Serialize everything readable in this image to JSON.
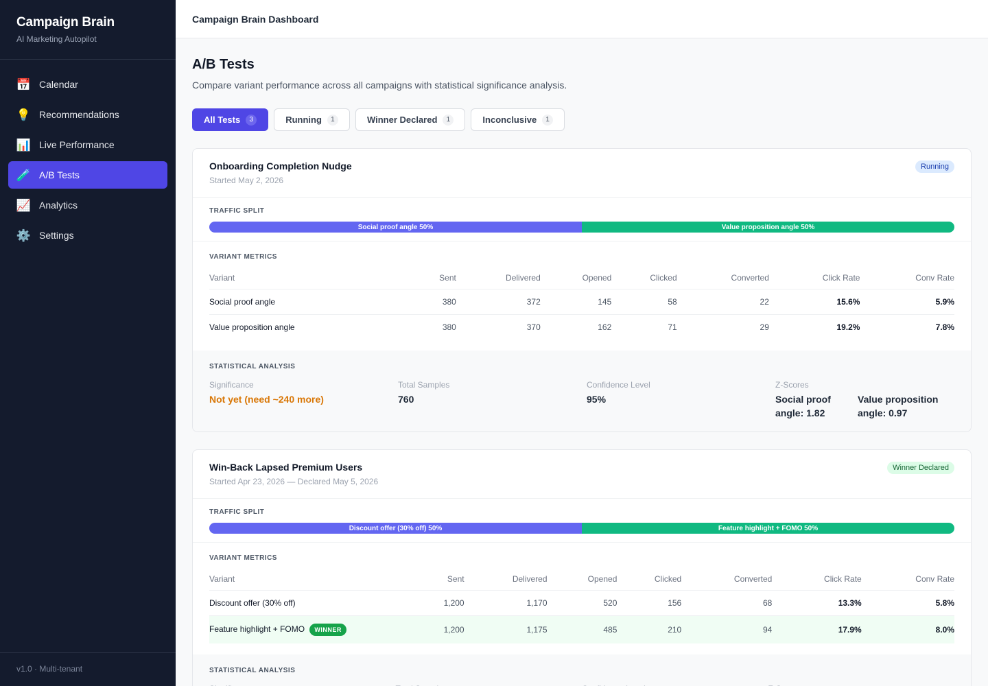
{
  "brand": {
    "title": "Campaign Brain",
    "subtitle": "AI Marketing Autopilot"
  },
  "nav": [
    {
      "label": "Calendar",
      "icon": "calendar-icon",
      "glyph": "📅"
    },
    {
      "label": "Recommendations",
      "icon": "lightbulb-icon",
      "glyph": "💡"
    },
    {
      "label": "Live Performance",
      "icon": "bar-chart-icon",
      "glyph": "📊"
    },
    {
      "label": "A/B Tests",
      "icon": "test-tube-icon",
      "glyph": "🧪",
      "active": true
    },
    {
      "label": "Analytics",
      "icon": "trend-chart-icon",
      "glyph": "📈"
    },
    {
      "label": "Settings",
      "icon": "gear-icon",
      "glyph": "⚙️"
    }
  ],
  "footer": "v1.0 · Multi-tenant",
  "topbar": {
    "title": "Campaign Brain Dashboard"
  },
  "page": {
    "title": "A/B Tests",
    "description": "Compare variant performance across all campaigns with statistical significance analysis."
  },
  "filters": [
    {
      "label": "All Tests",
      "count": "3",
      "active": true
    },
    {
      "label": "Running",
      "count": "1"
    },
    {
      "label": "Winner Declared",
      "count": "1"
    },
    {
      "label": "Inconclusive",
      "count": "1"
    }
  ],
  "labels": {
    "traffic_split": "Traffic Split",
    "variant_metrics": "Variant Metrics",
    "statistical_analysis": "Statistical Analysis",
    "significance": "Significance",
    "total_samples": "Total Samples",
    "confidence_level": "Confidence Level",
    "z_scores": "Z-Scores",
    "winner": "WINNER"
  },
  "columns": [
    "Variant",
    "Sent",
    "Delivered",
    "Opened",
    "Clicked",
    "Converted",
    "Click Rate",
    "Conv Rate"
  ],
  "tests": [
    {
      "name": "Onboarding Completion Nudge",
      "date": "Started May 2, 2026",
      "status": "Running",
      "split": [
        {
          "label": "Social proof angle 50%",
          "share": 0.5
        },
        {
          "label": "Value proposition angle 50%",
          "share": 0.5
        }
      ],
      "rows": [
        {
          "variant": "Social proof angle",
          "sent": "380",
          "delivered": "372",
          "opened": "145",
          "clicked": "58",
          "converted": "22",
          "click_rate": "15.6%",
          "conv_rate": "5.9%"
        },
        {
          "variant": "Value proposition angle",
          "sent": "380",
          "delivered": "370",
          "opened": "162",
          "clicked": "71",
          "converted": "29",
          "click_rate": "19.2%",
          "conv_rate": "7.8%"
        }
      ],
      "stats": {
        "significance": "Not yet (need ~240 more)",
        "total_samples": "760",
        "confidence_level": "95%",
        "z_scores": [
          "Social proof angle: 1.82",
          "Value proposition angle: 0.97"
        ]
      }
    },
    {
      "name": "Win-Back Lapsed Premium Users",
      "date": "Started Apr 23, 2026 — Declared May 5, 2026",
      "status": "Winner Declared",
      "split": [
        {
          "label": "Discount offer (30% off) 50%",
          "share": 0.5
        },
        {
          "label": "Feature highlight + FOMO 50%",
          "share": 0.5
        }
      ],
      "rows": [
        {
          "variant": "Discount offer (30% off)",
          "sent": "1,200",
          "delivered": "1,170",
          "opened": "520",
          "clicked": "156",
          "converted": "68",
          "click_rate": "13.3%",
          "conv_rate": "5.8%"
        },
        {
          "variant": "Feature highlight + FOMO",
          "sent": "1,200",
          "delivered": "1,175",
          "opened": "485",
          "clicked": "210",
          "converted": "94",
          "click_rate": "17.9%",
          "conv_rate": "8.0%",
          "winner": true
        }
      ]
    }
  ]
}
